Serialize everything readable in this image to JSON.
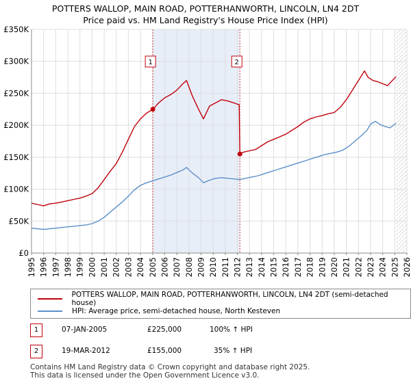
{
  "title_line1": "POTTERS WALLOP, MAIN ROAD, POTTERHANWORTH, LINCOLN, LN4 2DT",
  "title_line2": "Price paid vs. HM Land Registry's House Price Index (HPI)",
  "colors": {
    "property": "#c0000b",
    "hpi": "#5b8fc9",
    "shade": "#e8eef8",
    "grid": "#dddddd"
  },
  "chart_data": {
    "type": "line",
    "xlim": [
      1995,
      2026
    ],
    "ylim": [
      0,
      350000
    ],
    "x_ticks": [
      "1995",
      "1996",
      "1997",
      "1998",
      "1999",
      "2000",
      "2001",
      "2002",
      "2003",
      "2004",
      "2005",
      "2006",
      "2007",
      "2008",
      "2009",
      "2010",
      "2011",
      "2012",
      "2013",
      "2014",
      "2015",
      "2016",
      "2017",
      "2018",
      "2019",
      "2020",
      "2021",
      "2022",
      "2023",
      "2024",
      "2025",
      "2026"
    ],
    "y_ticks": [
      {
        "value": 0,
        "label": "£0"
      },
      {
        "value": 50000,
        "label": "£50K"
      },
      {
        "value": 100000,
        "label": "£100K"
      },
      {
        "value": 150000,
        "label": "£150K"
      },
      {
        "value": 200000,
        "label": "£200K"
      },
      {
        "value": 250000,
        "label": "£250K"
      },
      {
        "value": 300000,
        "label": "£300K"
      },
      {
        "value": 350000,
        "label": "£350K"
      }
    ],
    "grid": true,
    "shaded_period": [
      2005.02,
      2012.21
    ],
    "future_hatch_from": 2025.1,
    "series": [
      {
        "name": "POTTERS WALLOP, MAIN ROAD, POTTERHANWORTH, LINCOLN, LN4 2DT (semi-detached house)",
        "color": "#c0000b",
        "x": [
          1995.0,
          1995.5,
          1996.0,
          1996.5,
          1997.0,
          1997.5,
          1998.0,
          1998.5,
          1999.0,
          1999.5,
          2000.0,
          2000.5,
          2001.0,
          2001.5,
          2002.0,
          2002.5,
          2003.0,
          2003.5,
          2004.0,
          2004.5,
          2005.02,
          2005.5,
          2006.0,
          2006.5,
          2007.0,
          2007.5,
          2007.8,
          2008.3,
          2008.8,
          2009.2,
          2009.7,
          2010.2,
          2010.7,
          2011.2,
          2011.7,
          2012.15,
          2012.21,
          2012.5,
          2013.0,
          2013.5,
          2014.0,
          2014.5,
          2015.0,
          2015.5,
          2016.0,
          2016.5,
          2017.0,
          2017.5,
          2018.0,
          2018.5,
          2019.0,
          2019.5,
          2020.0,
          2020.5,
          2021.0,
          2021.5,
          2022.0,
          2022.5,
          2022.8,
          2023.2,
          2023.6,
          2024.0,
          2024.4,
          2024.8,
          2025.1
        ],
        "values": [
          78000,
          76000,
          74000,
          77000,
          78000,
          80000,
          82000,
          84000,
          86000,
          89000,
          93000,
          102000,
          115000,
          128000,
          140000,
          158000,
          178000,
          198000,
          210000,
          219000,
          225000,
          235000,
          243000,
          248000,
          255000,
          265000,
          270000,
          245000,
          225000,
          210000,
          230000,
          235000,
          240000,
          238000,
          235000,
          232000,
          155000,
          158000,
          160000,
          162000,
          168000,
          174000,
          178000,
          182000,
          186000,
          192000,
          198000,
          205000,
          210000,
          213000,
          215000,
          218000,
          220000,
          228000,
          240000,
          255000,
          270000,
          285000,
          275000,
          270000,
          268000,
          265000,
          262000,
          270000,
          276000
        ]
      },
      {
        "name": "HPI: Average price, semi-detached house, North Kesteven",
        "color": "#5b8fc9",
        "x": [
          1995.0,
          1995.5,
          1996.0,
          1996.5,
          1997.0,
          1997.5,
          1998.0,
          1998.5,
          1999.0,
          1999.5,
          2000.0,
          2000.5,
          2001.0,
          2001.5,
          2002.0,
          2002.5,
          2003.0,
          2003.5,
          2004.0,
          2004.5,
          2005.0,
          2005.5,
          2006.0,
          2006.5,
          2007.0,
          2007.5,
          2007.8,
          2008.3,
          2008.8,
          2009.2,
          2009.7,
          2010.2,
          2010.7,
          2011.2,
          2011.7,
          2012.2,
          2012.7,
          2013.2,
          2013.7,
          2014.2,
          2014.7,
          2015.2,
          2015.7,
          2016.2,
          2016.7,
          2017.2,
          2017.7,
          2018.2,
          2018.7,
          2019.2,
          2019.7,
          2020.2,
          2020.7,
          2021.2,
          2021.7,
          2022.2,
          2022.7,
          2023.0,
          2023.4,
          2023.8,
          2024.2,
          2024.6,
          2025.1
        ],
        "values": [
          39000,
          38000,
          37000,
          38000,
          39000,
          40000,
          41000,
          42000,
          43000,
          44000,
          46000,
          50000,
          56000,
          64000,
          72000,
          80000,
          89000,
          99000,
          106000,
          110000,
          113000,
          116000,
          119000,
          122000,
          126000,
          130000,
          134000,
          125000,
          118000,
          110000,
          114000,
          117000,
          118000,
          117000,
          116000,
          115000,
          117000,
          119000,
          121000,
          124000,
          127000,
          130000,
          133000,
          136000,
          139000,
          142000,
          145000,
          148000,
          151000,
          154000,
          156000,
          158000,
          161000,
          167000,
          175000,
          183000,
          192000,
          202000,
          206000,
          201000,
          198000,
          196000,
          203000
        ]
      }
    ],
    "annotations": [
      {
        "label": "1",
        "x": 2005.02,
        "y": 225000
      },
      {
        "label": "2",
        "x": 2012.21,
        "y": 155000
      }
    ]
  },
  "legend": {
    "property": "POTTERS WALLOP, MAIN ROAD, POTTERHANWORTH, LINCOLN, LN4 2DT (semi-detached house)",
    "hpi": "HPI: Average price, semi-detached house, North Kesteven"
  },
  "sales": [
    {
      "num": "1",
      "date": "07-JAN-2005",
      "price": "£225,000",
      "hpi": "100% ↑ HPI"
    },
    {
      "num": "2",
      "date": "19-MAR-2012",
      "price": "£155,000",
      "hpi": "35% ↑ HPI"
    }
  ],
  "footer": {
    "line1": "Contains HM Land Registry data © Crown copyright and database right 2025.",
    "line2": "This data is licensed under the Open Government Licence v3.0."
  }
}
